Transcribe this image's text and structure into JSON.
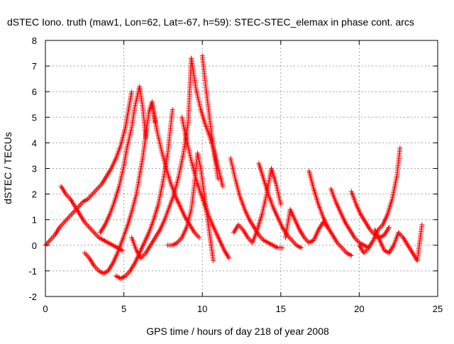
{
  "chart_data": {
    "type": "scatter",
    "title": "dSTEC Iono. truth (maw1, Lon=62, Lat=-67, h=59): STEC-STEC_elemax in phase cont. arcs",
    "xlabel": "GPS time / hours of day 218 of year 2008",
    "ylabel": "dSTEC  / TECUs",
    "xlim": [
      0,
      25
    ],
    "ylim": [
      -2,
      8
    ],
    "x_ticks": [
      0,
      5,
      10,
      15,
      20,
      25
    ],
    "y_ticks": [
      -2,
      -1,
      0,
      1,
      2,
      3,
      4,
      5,
      6,
      7,
      8
    ],
    "grid": true,
    "marker": "+",
    "color": "#ff0000",
    "series": [
      {
        "x": [
          0.0,
          0.3,
          0.6,
          0.9,
          1.2,
          1.5,
          1.8,
          2.1,
          2.4,
          2.7,
          3.0,
          3.3,
          3.6,
          3.9,
          4.2,
          4.5,
          4.8,
          5.1,
          5.3,
          5.5
        ],
        "y": [
          0.0,
          0.2,
          0.4,
          0.7,
          0.9,
          1.1,
          1.3,
          1.5,
          1.7,
          1.8,
          2.0,
          2.2,
          2.4,
          2.7,
          3.0,
          3.4,
          3.9,
          4.6,
          5.3,
          6.0
        ]
      },
      {
        "x": [
          1.0,
          1.3,
          1.6,
          1.9,
          2.2,
          2.5,
          2.8,
          3.1,
          3.4,
          3.7,
          4.0,
          4.3,
          4.6,
          4.9
        ],
        "y": [
          2.3,
          2.0,
          1.8,
          1.5,
          1.2,
          0.9,
          0.7,
          0.5,
          0.3,
          0.2,
          0.1,
          0.0,
          -0.1,
          -0.2
        ]
      },
      {
        "x": [
          2.5,
          2.8,
          3.1,
          3.4,
          3.7,
          4.0,
          4.3,
          4.6,
          4.9,
          5.2,
          5.5,
          5.8,
          6.0,
          6.2,
          6.4,
          6.6,
          6.8,
          7.0
        ],
        "y": [
          -0.3,
          -0.5,
          -0.8,
          -1.0,
          -1.1,
          -1.0,
          -0.7,
          -0.3,
          0.2,
          0.7,
          1.3,
          2.0,
          2.7,
          3.4,
          4.3,
          5.2,
          5.6,
          4.8
        ]
      },
      {
        "x": [
          3.5,
          3.8,
          4.1,
          4.4,
          4.7,
          5.0,
          5.2,
          5.5,
          5.7,
          6.0,
          6.2,
          6.4
        ],
        "y": [
          0.5,
          0.8,
          1.2,
          1.7,
          2.3,
          3.1,
          3.8,
          4.6,
          5.4,
          6.2,
          5.4,
          4.2
        ]
      },
      {
        "x": [
          4.5,
          4.8,
          5.1,
          5.4,
          5.7,
          6.0,
          6.3,
          6.6,
          6.9,
          7.2,
          7.5,
          7.8,
          8.1
        ],
        "y": [
          -1.2,
          -1.3,
          -1.2,
          -1.0,
          -0.7,
          -0.3,
          0.1,
          0.5,
          1.0,
          1.6,
          2.5,
          3.6,
          5.3
        ]
      },
      {
        "x": [
          5.5,
          5.8,
          6.1,
          6.4,
          6.7,
          7.0,
          7.3,
          7.6,
          7.9,
          8.2,
          8.5,
          8.8,
          9.1,
          9.3
        ],
        "y": [
          0.3,
          -0.2,
          -0.5,
          -0.3,
          0.0,
          0.3,
          0.6,
          1.0,
          1.5,
          2.0,
          2.7,
          3.6,
          4.8,
          7.3
        ]
      },
      {
        "x": [
          6.8,
          7.1,
          7.4,
          7.7,
          8.0,
          8.3,
          8.6,
          8.9,
          9.2,
          9.5,
          9.8
        ],
        "y": [
          5.6,
          4.5,
          3.7,
          3.0,
          2.4,
          1.9,
          1.5,
          1.1,
          0.8,
          0.5,
          0.3
        ]
      },
      {
        "x": [
          7.8,
          8.1,
          8.4,
          8.7,
          9.0,
          9.3,
          9.5,
          9.7,
          9.9,
          10.1,
          10.3,
          10.5,
          10.7
        ],
        "y": [
          0.0,
          0.0,
          0.1,
          0.3,
          0.7,
          1.4,
          2.4,
          3.6,
          3.0,
          2.1,
          1.2,
          0.3,
          -0.6
        ]
      },
      {
        "x": [
          8.7,
          9.0,
          9.3,
          9.6,
          9.9,
          10.2,
          10.5,
          10.8,
          11.1,
          11.4,
          11.7
        ],
        "y": [
          5.0,
          4.1,
          3.3,
          2.6,
          2.0,
          1.5,
          1.0,
          0.6,
          0.2,
          -0.2,
          -0.5
        ]
      },
      {
        "x": [
          9.3,
          9.6,
          9.9,
          10.2,
          10.5,
          10.7,
          10.9,
          11.1,
          11.3
        ],
        "y": [
          7.3,
          6.1,
          5.3,
          4.7,
          4.2,
          3.8,
          3.3,
          2.8,
          2.3
        ]
      },
      {
        "x": [
          10.0,
          10.2,
          10.4,
          10.6,
          10.8,
          11.0
        ],
        "y": [
          7.4,
          6.3,
          5.3,
          4.3,
          3.4,
          2.6
        ]
      },
      {
        "x": [
          11.8,
          12.1,
          12.4,
          12.7,
          13.0,
          13.3,
          13.6,
          13.9,
          14.2,
          14.5,
          14.8,
          15.1
        ],
        "y": [
          3.4,
          2.6,
          1.9,
          1.4,
          1.0,
          0.7,
          0.4,
          0.2,
          0.1,
          0.0,
          -0.1,
          -0.1
        ]
      },
      {
        "x": [
          12.0,
          12.3,
          12.6,
          12.9,
          13.2,
          13.5,
          13.8,
          14.1,
          14.4,
          14.7,
          15.0
        ],
        "y": [
          0.5,
          0.8,
          0.6,
          0.3,
          0.1,
          0.6,
          1.2,
          2.0,
          3.0,
          2.4,
          1.6
        ]
      },
      {
        "x": [
          13.6,
          13.9,
          14.2,
          14.5,
          14.8,
          15.1,
          15.4,
          15.7,
          16.0,
          16.3
        ],
        "y": [
          3.2,
          2.6,
          2.0,
          1.5,
          1.1,
          0.7,
          0.4,
          0.2,
          0.0,
          -0.1
        ]
      },
      {
        "x": [
          15.3,
          15.6,
          15.9,
          16.2,
          16.5,
          16.8,
          17.1,
          17.4,
          17.7,
          18.0
        ],
        "y": [
          0.3,
          1.4,
          1.0,
          0.6,
          0.3,
          0.1,
          0.2,
          0.6,
          0.9,
          0.7
        ]
      },
      {
        "x": [
          16.8,
          17.1,
          17.4,
          17.7,
          18.0,
          18.3,
          18.6,
          18.9,
          19.2,
          19.5
        ],
        "y": [
          2.9,
          2.2,
          1.6,
          1.1,
          0.7,
          0.4,
          0.1,
          -0.1,
          -0.3,
          -0.4
        ]
      },
      {
        "x": [
          18.2,
          18.5,
          18.8,
          19.1,
          19.4,
          19.7,
          20.0,
          20.3,
          20.6
        ],
        "y": [
          2.2,
          1.7,
          1.3,
          0.9,
          0.6,
          0.3,
          0.1,
          0.0,
          -0.1
        ]
      },
      {
        "x": [
          19.5,
          19.8,
          20.1,
          20.4,
          20.7,
          21.0,
          21.3,
          21.6,
          21.9
        ],
        "y": [
          2.1,
          1.6,
          1.2,
          0.9,
          0.6,
          0.4,
          0.3,
          0.4,
          0.7
        ]
      },
      {
        "x": [
          20.0,
          20.3,
          20.6,
          20.9,
          21.2,
          21.5,
          21.8,
          22.1,
          22.4,
          22.6
        ],
        "y": [
          0.0,
          -0.3,
          -0.1,
          0.2,
          0.6,
          0.8,
          1.2,
          1.8,
          2.7,
          3.8
        ]
      },
      {
        "x": [
          21.0,
          21.3,
          21.6,
          21.9,
          22.2,
          22.5,
          22.8,
          23.1,
          23.4,
          23.7,
          24.0
        ],
        "y": [
          0.6,
          0.2,
          -0.2,
          -0.3,
          0.0,
          0.5,
          0.3,
          0.0,
          -0.3,
          -0.6,
          0.8
        ]
      }
    ]
  }
}
